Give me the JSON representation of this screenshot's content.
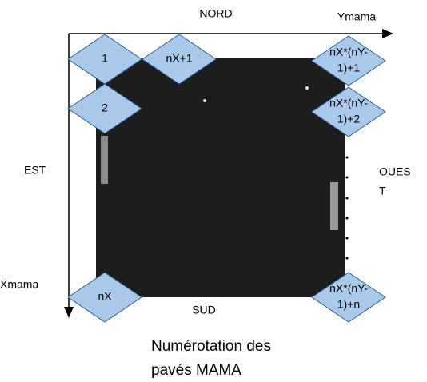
{
  "labels": {
    "north": "NORD",
    "south": "SUD",
    "east": "EST",
    "west": [
      "OUES",
      "T"
    ],
    "x_axis": "Xmama",
    "y_axis": "Ymama"
  },
  "tiles": [
    {
      "label": [
        "1"
      ]
    },
    {
      "label": [
        "2"
      ]
    },
    {
      "label": [
        "nX+1"
      ]
    },
    {
      "label": [
        "nX*(nY-",
        "1)+1"
      ]
    },
    {
      "label": [
        "nX*(nY-",
        "1)+2"
      ]
    },
    {
      "label": [
        "nX*(nY-",
        "1)+n"
      ]
    },
    {
      "label": [
        "nX"
      ]
    }
  ],
  "caption": [
    "Numérotation des",
    "pavés MAMA"
  ]
}
